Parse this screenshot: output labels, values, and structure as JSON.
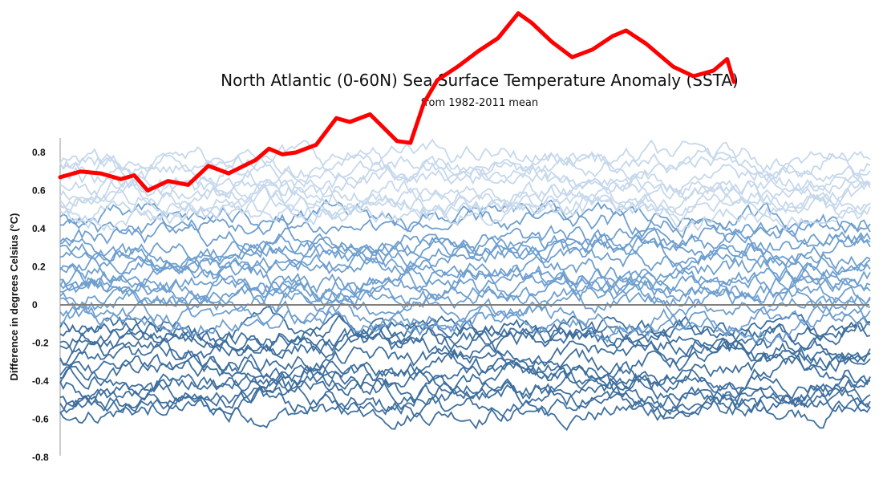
{
  "chart_data": {
    "type": "line",
    "title": "North Atlantic (0-60N) Sea Surface Temperature Anomaly (SSTA)",
    "subtitle": "from 1982-2011 mean",
    "ylabel": "Difference in degrees Celsius (°C)",
    "xlabel": "",
    "ylim": [
      -0.8,
      0.8
    ],
    "yticks": [
      "0.8",
      "0.6",
      "0.4",
      "0.2",
      "0",
      "-0.2",
      "-0.4",
      "-0.6",
      "-0.8"
    ],
    "zero_line": true,
    "grid": false,
    "legend": "none",
    "background_series": {
      "count": 40,
      "value_range": [
        -0.68,
        0.96
      ],
      "colors": [
        "#c6d8ec",
        "#6f9fcf",
        "#3e6f9e"
      ]
    },
    "highlight_series": {
      "color": "#ff0000",
      "ylim_top_of_view": 1.53,
      "points": [
        [
          0.0,
          0.67
        ],
        [
          0.03,
          0.7
        ],
        [
          0.06,
          0.69
        ],
        [
          0.09,
          0.66
        ],
        [
          0.11,
          0.68
        ],
        [
          0.13,
          0.6
        ],
        [
          0.16,
          0.65
        ],
        [
          0.19,
          0.63
        ],
        [
          0.22,
          0.73
        ],
        [
          0.25,
          0.69
        ],
        [
          0.29,
          0.76
        ],
        [
          0.31,
          0.82
        ],
        [
          0.33,
          0.79
        ],
        [
          0.35,
          0.8
        ],
        [
          0.38,
          0.84
        ],
        [
          0.41,
          0.98
        ],
        [
          0.43,
          0.96
        ],
        [
          0.46,
          1.0
        ],
        [
          0.48,
          0.93
        ],
        [
          0.5,
          0.86
        ],
        [
          0.52,
          0.85
        ],
        [
          0.54,
          1.06
        ],
        [
          0.56,
          1.18
        ],
        [
          0.59,
          1.25
        ],
        [
          0.62,
          1.33
        ],
        [
          0.65,
          1.4
        ],
        [
          0.68,
          1.53
        ],
        [
          0.7,
          1.48
        ],
        [
          0.73,
          1.38
        ],
        [
          0.76,
          1.3
        ],
        [
          0.79,
          1.34
        ],
        [
          0.82,
          1.41
        ],
        [
          0.84,
          1.44
        ],
        [
          0.87,
          1.37
        ],
        [
          0.89,
          1.31
        ],
        [
          0.91,
          1.25
        ],
        [
          0.94,
          1.2
        ],
        [
          0.97,
          1.23
        ],
        [
          0.99,
          1.29
        ],
        [
          1.0,
          1.17
        ]
      ]
    }
  }
}
